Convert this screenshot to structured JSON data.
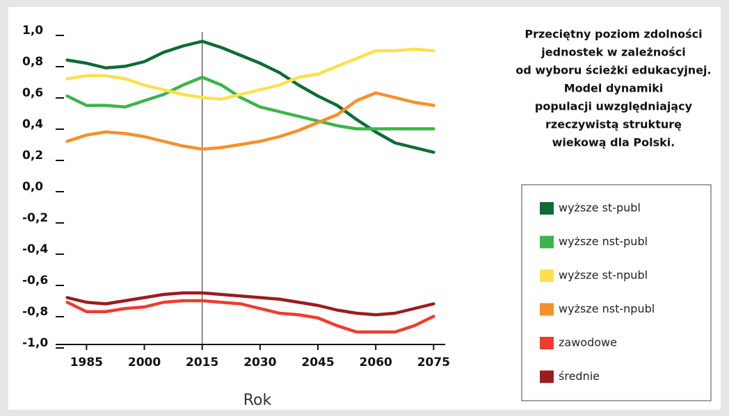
{
  "chart_data": {
    "type": "line",
    "title": [
      "Przeciętny poziom zdolności",
      "jednostek w zależności",
      "od wyboru ścieżki edukacyjnej.",
      "Model dynamiki",
      "populacji uwzględniający",
      "rzeczywistą strukturę",
      "wiekową dla Polski."
    ],
    "x_label": "Rok",
    "x": [
      1980,
      1985,
      1990,
      1995,
      2000,
      2005,
      2010,
      2015,
      2020,
      2025,
      2030,
      2035,
      2040,
      2045,
      2050,
      2055,
      2060,
      2065,
      2070,
      2075
    ],
    "series": [
      {
        "name": "wyższe st-publ",
        "color": "#0f6b35",
        "values": [
          0.82,
          0.8,
          0.77,
          0.78,
          0.81,
          0.87,
          0.91,
          0.94,
          0.9,
          0.85,
          0.8,
          0.74,
          0.66,
          0.59,
          0.53,
          0.44,
          0.36,
          0.29,
          0.26,
          0.23
        ]
      },
      {
        "name": "wyższe nst-publ",
        "color": "#3cb54a",
        "values": [
          0.59,
          0.53,
          0.53,
          0.52,
          0.56,
          0.6,
          0.66,
          0.71,
          0.66,
          0.58,
          0.52,
          0.49,
          0.46,
          0.43,
          0.4,
          0.38,
          0.38,
          0.38,
          0.38,
          0.38
        ]
      },
      {
        "name": "wyższe st-npubl",
        "color": "#fde14c",
        "values": [
          0.7,
          0.72,
          0.72,
          0.7,
          0.66,
          0.63,
          0.6,
          0.58,
          0.57,
          0.6,
          0.63,
          0.66,
          0.71,
          0.73,
          0.78,
          0.83,
          0.88,
          0.88,
          0.89,
          0.88
        ]
      },
      {
        "name": "wyższe nst-npubl",
        "color": "#f6902a",
        "values": [
          0.3,
          0.34,
          0.36,
          0.35,
          0.33,
          0.3,
          0.27,
          0.25,
          0.26,
          0.28,
          0.3,
          0.33,
          0.37,
          0.42,
          0.47,
          0.56,
          0.61,
          0.58,
          0.55,
          0.53
        ]
      },
      {
        "name": "zawodowe",
        "color": "#ee3d2c",
        "values": [
          -0.73,
          -0.79,
          -0.79,
          -0.77,
          -0.76,
          -0.73,
          -0.72,
          -0.72,
          -0.73,
          -0.74,
          -0.77,
          -0.8,
          -0.81,
          -0.83,
          -0.88,
          -0.92,
          -0.92,
          -0.92,
          -0.88,
          -0.82
        ]
      },
      {
        "name": "średnie",
        "color": "#9b1c1f",
        "values": [
          -0.7,
          -0.73,
          -0.74,
          -0.72,
          -0.7,
          -0.68,
          -0.67,
          -0.67,
          -0.68,
          -0.69,
          -0.7,
          -0.71,
          -0.73,
          -0.75,
          -0.78,
          -0.8,
          -0.81,
          -0.8,
          -0.77,
          -0.74
        ]
      }
    ],
    "xlim": [
      1977,
      2078
    ],
    "xticks": [
      1985,
      2000,
      2015,
      2030,
      2045,
      2060,
      2075
    ],
    "ylim": [
      -1.0,
      1.0
    ],
    "yticks": [
      {
        "value": -1.0,
        "label": "-1,0"
      },
      {
        "value": -0.8,
        "label": "-0,8"
      },
      {
        "value": -0.6,
        "label": "-0,6"
      },
      {
        "value": -0.4,
        "label": "-0,4"
      },
      {
        "value": -0.2,
        "label": "-0,2"
      },
      {
        "value": 0.0,
        "label": "0,0"
      },
      {
        "value": 0.2,
        "label": "0,2"
      },
      {
        "value": 0.4,
        "label": "0,4"
      },
      {
        "value": 0.6,
        "label": "0,6"
      },
      {
        "value": 0.8,
        "label": "0,8"
      },
      {
        "value": 1.0,
        "label": "1,0"
      }
    ],
    "reference_line_x": 2015,
    "grid": false,
    "legend_position": "right"
  }
}
